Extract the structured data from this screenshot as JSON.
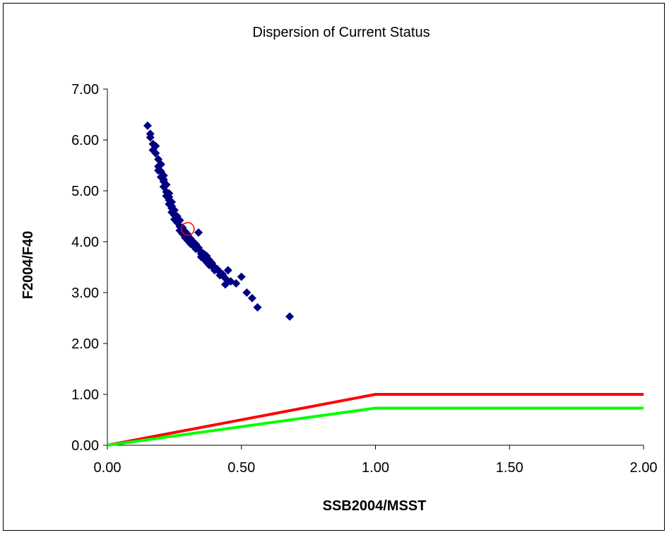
{
  "chart_data": {
    "type": "scatter",
    "title": "Dispersion of Current Status",
    "xlabel": "SSB2004/MSST",
    "ylabel": "F2004/F40",
    "xlim": [
      0,
      2
    ],
    "ylim": [
      0,
      7
    ],
    "x_ticks": [
      "0.00",
      "0.50",
      "1.00",
      "1.50",
      "2.00"
    ],
    "y_ticks": [
      "0.00",
      "1.00",
      "2.00",
      "3.00",
      "4.00",
      "5.00",
      "6.00",
      "7.00"
    ],
    "grid": false,
    "legend": "none",
    "scatter_color": "#000080",
    "points": [
      [
        0.15,
        6.28
      ],
      [
        0.16,
        6.12
      ],
      [
        0.16,
        6.05
      ],
      [
        0.17,
        5.92
      ],
      [
        0.18,
        5.88
      ],
      [
        0.18,
        5.74
      ],
      [
        0.19,
        5.62
      ],
      [
        0.19,
        5.48
      ],
      [
        0.2,
        5.52
      ],
      [
        0.2,
        5.38
      ],
      [
        0.2,
        5.27
      ],
      [
        0.21,
        5.3
      ],
      [
        0.21,
        5.18
      ],
      [
        0.21,
        5.08
      ],
      [
        0.22,
        5.12
      ],
      [
        0.22,
        4.98
      ],
      [
        0.22,
        4.9
      ],
      [
        0.23,
        4.95
      ],
      [
        0.23,
        4.82
      ],
      [
        0.23,
        4.74
      ],
      [
        0.24,
        4.78
      ],
      [
        0.24,
        4.66
      ],
      [
        0.24,
        4.58
      ],
      [
        0.25,
        4.62
      ],
      [
        0.25,
        4.52
      ],
      [
        0.25,
        4.44
      ],
      [
        0.26,
        4.5
      ],
      [
        0.26,
        4.38
      ],
      [
        0.27,
        4.42
      ],
      [
        0.27,
        4.3
      ],
      [
        0.27,
        4.22
      ],
      [
        0.28,
        4.28
      ],
      [
        0.28,
        4.16
      ],
      [
        0.29,
        4.2
      ],
      [
        0.29,
        4.08
      ],
      [
        0.3,
        4.14
      ],
      [
        0.3,
        4.02
      ],
      [
        0.31,
        4.06
      ],
      [
        0.31,
        3.96
      ],
      [
        0.32,
        4.0
      ],
      [
        0.32,
        3.92
      ],
      [
        0.33,
        3.95
      ],
      [
        0.33,
        3.86
      ],
      [
        0.34,
        3.88
      ],
      [
        0.34,
        4.18
      ],
      [
        0.35,
        3.8
      ],
      [
        0.35,
        3.7
      ],
      [
        0.36,
        3.76
      ],
      [
        0.36,
        3.66
      ],
      [
        0.37,
        3.72
      ],
      [
        0.37,
        3.6
      ],
      [
        0.38,
        3.64
      ],
      [
        0.38,
        3.54
      ],
      [
        0.39,
        3.58
      ],
      [
        0.4,
        3.5
      ],
      [
        0.4,
        3.44
      ],
      [
        0.41,
        3.46
      ],
      [
        0.42,
        3.4
      ],
      [
        0.43,
        3.36
      ],
      [
        0.44,
        3.28
      ],
      [
        0.44,
        3.16
      ],
      [
        0.45,
        3.44
      ],
      [
        0.46,
        3.22
      ],
      [
        0.48,
        3.18
      ],
      [
        0.5,
        3.31
      ],
      [
        0.52,
        3.0
      ],
      [
        0.54,
        2.89
      ],
      [
        0.56,
        2.71
      ],
      [
        0.68,
        2.53
      ],
      [
        0.17,
        5.8
      ],
      [
        0.19,
        5.4
      ],
      [
        0.21,
        5.22
      ],
      [
        0.23,
        4.88
      ],
      [
        0.24,
        4.7
      ],
      [
        0.26,
        4.46
      ],
      [
        0.28,
        4.24
      ],
      [
        0.3,
        4.1
      ],
      [
        0.32,
        3.96
      ],
      [
        0.35,
        3.76
      ],
      [
        0.37,
        3.66
      ],
      [
        0.39,
        3.52
      ],
      [
        0.42,
        3.34
      ]
    ],
    "mean_point": [
      0.3,
      4.25
    ],
    "mean_color": "#ff0000",
    "lines": [
      {
        "color": "#ff0000",
        "points": [
          [
            0,
            0
          ],
          [
            1,
            1
          ],
          [
            2,
            1
          ]
        ]
      },
      {
        "color": "#00ff00",
        "points": [
          [
            0,
            0
          ],
          [
            1,
            0.73
          ],
          [
            2,
            0.73
          ]
        ]
      }
    ]
  }
}
